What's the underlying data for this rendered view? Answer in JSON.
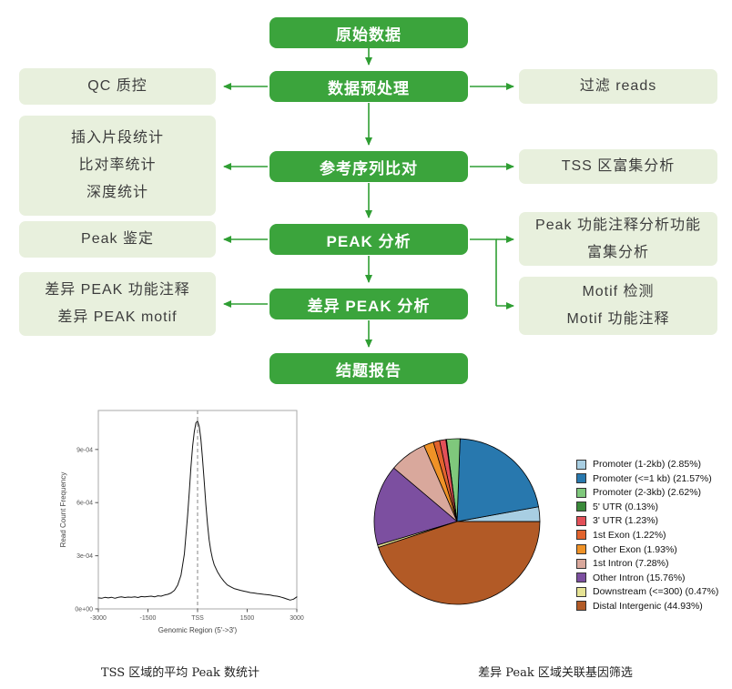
{
  "flowchart": {
    "center": [
      {
        "label": "原始数据"
      },
      {
        "label": "数据预处理"
      },
      {
        "label": "参考序列比对"
      },
      {
        "label": "PEAK 分析"
      },
      {
        "label": "差异 PEAK 分析"
      },
      {
        "label": "结题报告"
      }
    ],
    "left": [
      {
        "lines": [
          "QC 质控"
        ]
      },
      {
        "lines": [
          "插入片段统计",
          "比对率统计",
          "深度统计"
        ]
      },
      {
        "lines": [
          "Peak 鉴定"
        ]
      },
      {
        "lines": [
          "差异 PEAK 功能注释",
          "差异 PEAK motif"
        ]
      }
    ],
    "right": [
      {
        "lines": [
          "过滤 reads"
        ]
      },
      {
        "lines": [
          "TSS 区富集分析"
        ]
      },
      {
        "lines": [
          "Peak 功能注释分析功能",
          "富集分析"
        ]
      },
      {
        "lines": [
          "Motif 检测",
          "Motif 功能注释"
        ]
      }
    ],
    "colors": {
      "node_bg": "#3ba43c",
      "node_text": "#ffffff",
      "side_bg": "#e8f0dd",
      "side_text": "#3d3d3d",
      "arrow": "#2f9e33"
    }
  },
  "figures": {
    "tss_caption": "TSS 区域的平均 Peak 数统计",
    "pie_caption": "差异 Peak 区域关联基因筛选"
  },
  "chart_data": [
    {
      "type": "line",
      "title": "",
      "xlabel": "Genomic Region (5'->3')",
      "ylabel": "Read Count Frequency",
      "xlim": [
        -3000,
        3000
      ],
      "ylim": [
        0,
        0.00112
      ],
      "grid": false,
      "line_color": "#111111",
      "vline_x": 0,
      "x_ticks": [
        -3000,
        -1500,
        0,
        1500,
        3000
      ],
      "x_tick_labels": [
        "-3000",
        "-1500",
        "TSS",
        "1500",
        "3000"
      ],
      "y_ticks": [
        0,
        0.0003,
        0.0006,
        0.0009
      ],
      "y_tick_labels": [
        "0e+00",
        "3e-04",
        "6e-04",
        "9e-04"
      ],
      "y_scale": 0.0001,
      "x": [
        -3000,
        -2900,
        -2800,
        -2700,
        -2600,
        -2500,
        -2400,
        -2300,
        -2200,
        -2100,
        -2000,
        -1900,
        -1800,
        -1700,
        -1600,
        -1500,
        -1400,
        -1300,
        -1200,
        -1100,
        -1000,
        -900,
        -800,
        -700,
        -600,
        -500,
        -400,
        -300,
        -250,
        -200,
        -150,
        -100,
        -50,
        0,
        50,
        100,
        150,
        200,
        250,
        300,
        350,
        400,
        450,
        500,
        550,
        600,
        700,
        800,
        900,
        1000,
        1100,
        1200,
        1300,
        1400,
        1500,
        1600,
        1700,
        1800,
        1900,
        2000,
        2100,
        2200,
        2300,
        2400,
        2500,
        2600,
        2700,
        2800,
        2900,
        3000
      ],
      "y_e4": [
        0.62,
        0.6,
        0.65,
        0.62,
        0.66,
        0.6,
        0.65,
        0.68,
        0.64,
        0.67,
        0.66,
        0.68,
        0.64,
        0.7,
        0.68,
        0.7,
        0.72,
        0.68,
        0.74,
        0.72,
        0.78,
        0.82,
        0.9,
        1.05,
        1.35,
        1.9,
        3.1,
        5.3,
        6.6,
        8.0,
        9.2,
        10.0,
        10.5,
        10.6,
        10.3,
        9.6,
        8.5,
        7.2,
        5.9,
        4.8,
        3.9,
        3.3,
        2.85,
        2.5,
        2.3,
        2.1,
        1.8,
        1.55,
        1.35,
        1.25,
        1.15,
        1.1,
        1.05,
        1.0,
        0.96,
        0.92,
        0.9,
        0.87,
        0.85,
        0.82,
        0.8,
        0.78,
        0.74,
        0.72,
        0.68,
        0.62,
        0.56,
        0.5,
        0.55,
        0.68
      ]
    },
    {
      "type": "pie",
      "start_angle_deg": 0,
      "direction": "counterclockwise",
      "stroke": "#000000",
      "slices": [
        {
          "label": "Promoter (1-2kb) (2.85%)",
          "value": 2.85,
          "color": "#a8cee2"
        },
        {
          "label": "Promoter (<=1 kb) (21.57%)",
          "value": 21.57,
          "color": "#2878ae"
        },
        {
          "label": "Promoter (2-3kb) (2.62%)",
          "value": 2.62,
          "color": "#7fc87c"
        },
        {
          "label": "5' UTR (0.13%)",
          "value": 0.13,
          "color": "#3a8a3a"
        },
        {
          "label": "3' UTR (1.23%)",
          "value": 1.23,
          "color": "#e25058"
        },
        {
          "label": "1st Exon (1.22%)",
          "value": 1.22,
          "color": "#e2632d"
        },
        {
          "label": "Other Exon (1.93%)",
          "value": 1.93,
          "color": "#ef9227"
        },
        {
          "label": "1st Intron (7.28%)",
          "value": 7.28,
          "color": "#d9a89c"
        },
        {
          "label": "Other Intron (15.76%)",
          "value": 15.76,
          "color": "#7c4fa0"
        },
        {
          "label": "Downstream (<=300) (0.47%)",
          "value": 0.47,
          "color": "#e6e394"
        },
        {
          "label": "Distal Intergenic (44.93%)",
          "value": 44.93,
          "color": "#b25a26"
        }
      ]
    }
  ]
}
